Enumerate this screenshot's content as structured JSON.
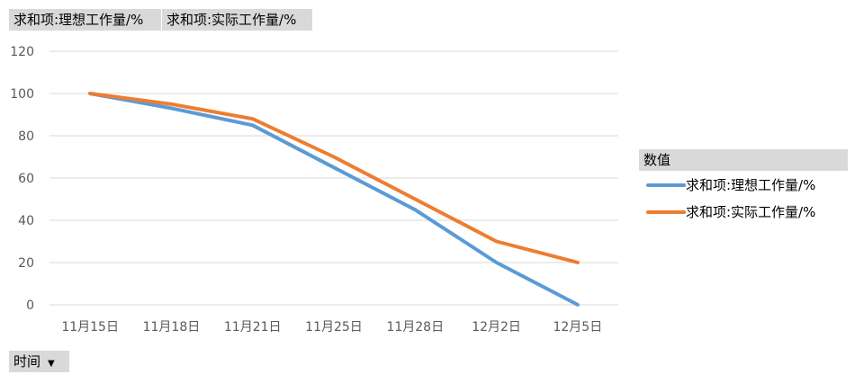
{
  "field_buttons": [
    "求和项:理想工作量/%",
    "求和项:实际工作量/%"
  ],
  "axis_field": {
    "label": "时间",
    "icon": "dropdown-triangle-icon"
  },
  "legend": {
    "title": "数值"
  },
  "chart_data": {
    "type": "line",
    "categories": [
      "11月15日",
      "11月18日",
      "11月21日",
      "11月25日",
      "11月28日",
      "12月2日",
      "12月5日"
    ],
    "series": [
      {
        "name": "求和项:理想工作量/%",
        "values": [
          100,
          93,
          85,
          65,
          45,
          20,
          0
        ],
        "color": "#5b9bd5"
      },
      {
        "name": "求和项:实际工作量/%",
        "values": [
          100,
          95,
          88,
          70,
          50,
          30,
          20
        ],
        "color": "#ed7d31"
      }
    ],
    "y_ticks": [
      0,
      20,
      40,
      60,
      80,
      100,
      120
    ],
    "ylim": [
      0,
      120
    ],
    "grid": true,
    "legend_position": "right"
  }
}
